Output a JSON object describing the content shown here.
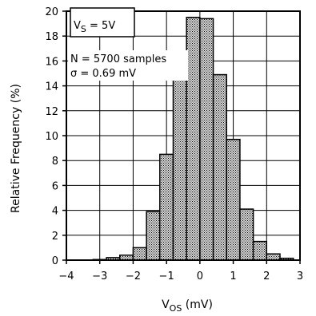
{
  "chart_data": {
    "type": "bar",
    "xlabel": "V",
    "xlabel_sub": "OS",
    "xlabel_unit": " (mV)",
    "ylabel": "Relative Frequency (%)",
    "xlim": [
      -4,
      3
    ],
    "ylim": [
      0,
      20
    ],
    "x_ticks": [
      -4,
      -3,
      -2,
      -1,
      0,
      1,
      2,
      3
    ],
    "x_tick_labels": [
      "−4",
      "−3",
      "−2",
      "−1",
      "0",
      "1",
      "2",
      "3"
    ],
    "y_ticks": [
      0,
      2,
      4,
      6,
      8,
      10,
      12,
      14,
      16,
      18,
      20
    ],
    "y_tick_labels": [
      "0",
      "2",
      "4",
      "6",
      "8",
      "10",
      "12",
      "14",
      "16",
      "18",
      "20"
    ],
    "grid": true,
    "bin_width": 0.4,
    "bins": [
      {
        "x0": -3.6,
        "x1": -3.2,
        "value": 0.0
      },
      {
        "x0": -3.2,
        "x1": -2.8,
        "value": 0.05
      },
      {
        "x0": -2.8,
        "x1": -2.4,
        "value": 0.2
      },
      {
        "x0": -2.4,
        "x1": -2.0,
        "value": 0.4
      },
      {
        "x0": -2.0,
        "x1": -1.6,
        "value": 1.0
      },
      {
        "x0": -1.6,
        "x1": -1.2,
        "value": 3.9
      },
      {
        "x0": -1.2,
        "x1": -0.8,
        "value": 8.5
      },
      {
        "x0": -0.8,
        "x1": -0.4,
        "value": 15.2
      },
      {
        "x0": -0.4,
        "x1": 0.0,
        "value": 19.5
      },
      {
        "x0": 0.0,
        "x1": 0.4,
        "value": 19.4
      },
      {
        "x0": 0.4,
        "x1": 0.8,
        "value": 14.9
      },
      {
        "x0": 0.8,
        "x1": 1.2,
        "value": 9.7
      },
      {
        "x0": 1.2,
        "x1": 1.6,
        "value": 4.1
      },
      {
        "x0": 1.6,
        "x1": 2.0,
        "value": 1.5
      },
      {
        "x0": 2.0,
        "x1": 2.4,
        "value": 0.5
      },
      {
        "x0": 2.4,
        "x1": 2.8,
        "value": 0.15
      },
      {
        "x0": 2.8,
        "x1": 3.2,
        "value": 0.0
      }
    ],
    "annotations": {
      "supply_prefix": "V",
      "supply_sub": "S",
      "supply_value": " = 5V",
      "samples": "N = 5700 samples",
      "sigma": "σ = 0.69 mV"
    }
  }
}
